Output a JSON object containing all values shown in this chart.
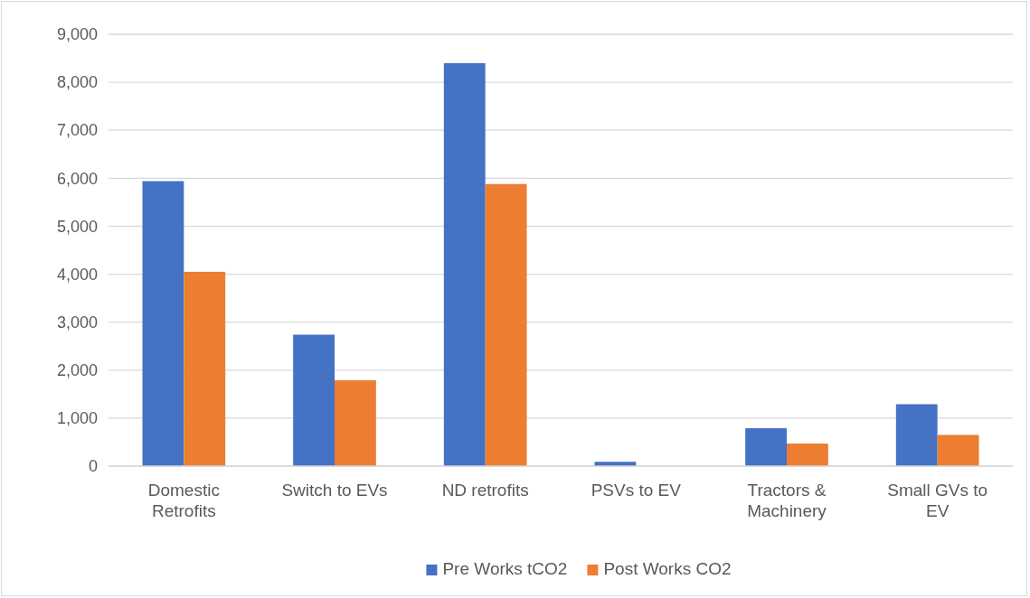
{
  "chart_data": {
    "type": "bar",
    "categories": [
      "Domestic Retrofits",
      "Switch to EVs",
      "ND retrofits",
      "PSVs to EV",
      "Tractors & Machinery",
      "Small GVs to EV"
    ],
    "series": [
      {
        "name": "Pre Works tCO2",
        "color": "#4472c4",
        "values": [
          5940,
          2740,
          8400,
          90,
          790,
          1290
        ]
      },
      {
        "name": "Post Works CO2",
        "color": "#ed7d31",
        "values": [
          4050,
          1790,
          5880,
          0,
          470,
          650
        ]
      }
    ],
    "ylim": [
      0,
      9000
    ],
    "yticks": [
      {
        "value": 0,
        "label": "0"
      },
      {
        "value": 1000,
        "label": "1,000"
      },
      {
        "value": 2000,
        "label": "2,000"
      },
      {
        "value": 3000,
        "label": "3,000"
      },
      {
        "value": 4000,
        "label": "4,000"
      },
      {
        "value": 5000,
        "label": "5,000"
      },
      {
        "value": 6000,
        "label": "6,000"
      },
      {
        "value": 7000,
        "label": "7,000"
      },
      {
        "value": 8000,
        "label": "8,000"
      },
      {
        "value": 9000,
        "label": "9,000"
      }
    ],
    "grid": "y",
    "legend": "bottom"
  }
}
